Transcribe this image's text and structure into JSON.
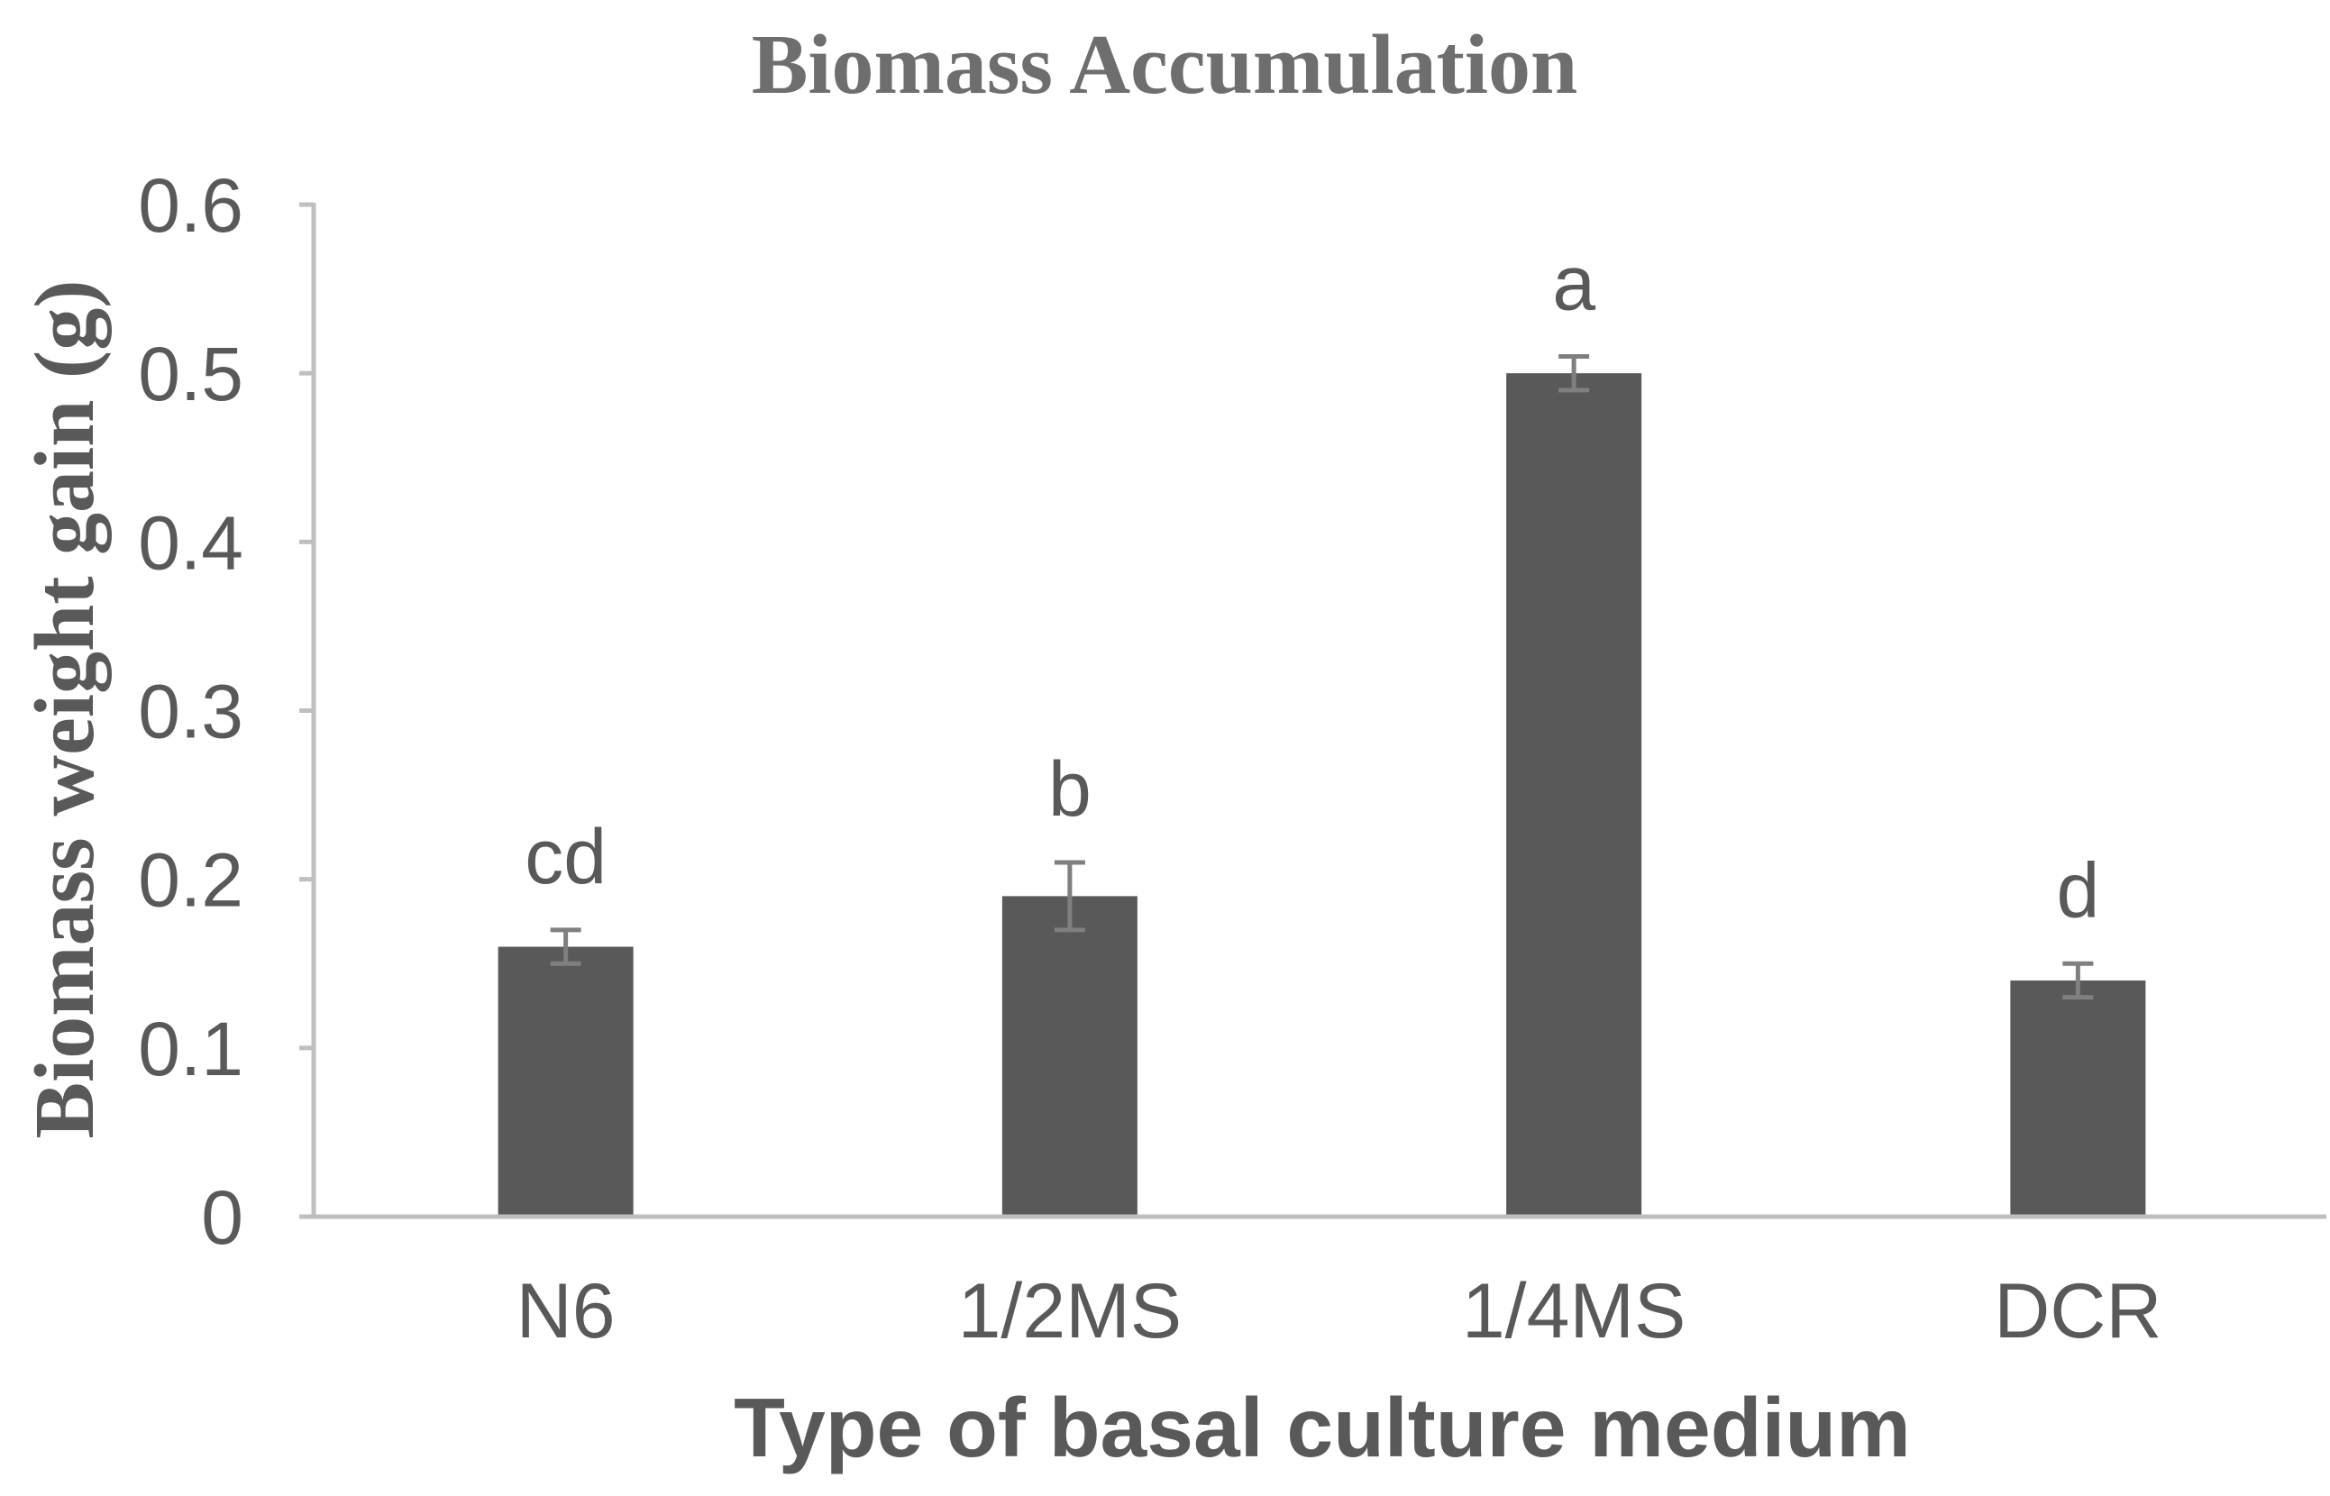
{
  "chart_data": {
    "type": "bar",
    "title": "Biomass Accumulation",
    "xlabel": "Type of basal culture medium",
    "ylabel": "Biomass weight gain (g)",
    "categories": [
      "N6",
      "1/2MS",
      "1/4MS",
      "DCR"
    ],
    "values": [
      0.16,
      0.19,
      0.5,
      0.14
    ],
    "errors": [
      0.01,
      0.02,
      0.01,
      0.01
    ],
    "annotations": [
      "cd",
      "b",
      "a",
      "d"
    ],
    "yticks": [
      "0",
      "0.1",
      "0.2",
      "0.3",
      "0.4",
      "0.5",
      "0.6"
    ],
    "ylim": [
      0,
      0.6
    ],
    "grid": false,
    "legend": "none",
    "colors": {
      "bar": "#595959",
      "error_bar": "#7f7f7f",
      "axis": "#bfbfbf",
      "text": "#595959"
    }
  }
}
